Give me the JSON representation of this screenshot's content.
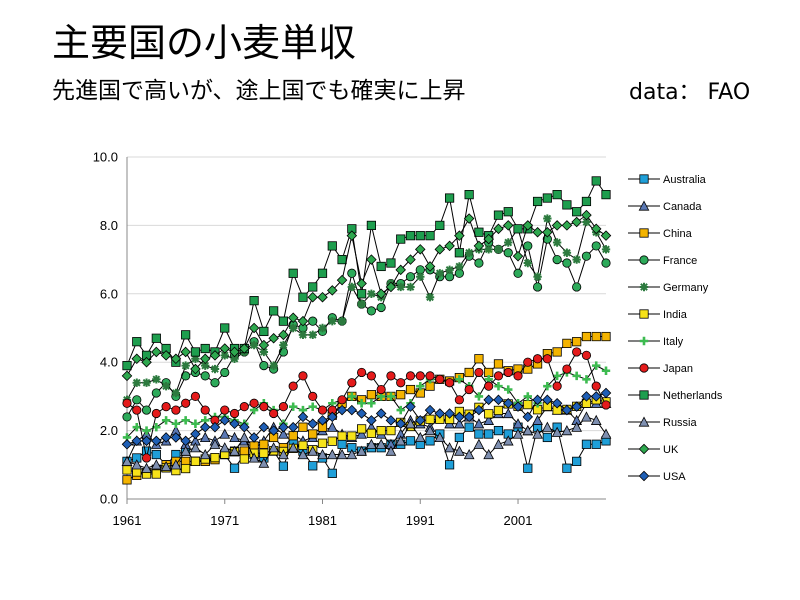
{
  "title": "主要国の小麦単収",
  "subtitle": "先進国で高いが、途上国でも確実に上昇",
  "source": "data： FAO",
  "chart_data": {
    "type": "line",
    "x": [
      1961,
      1962,
      1963,
      1964,
      1965,
      1966,
      1967,
      1968,
      1969,
      1970,
      1971,
      1972,
      1973,
      1974,
      1975,
      1976,
      1977,
      1978,
      1979,
      1980,
      1981,
      1982,
      1983,
      1984,
      1985,
      1986,
      1987,
      1988,
      1989,
      1990,
      1991,
      1992,
      1993,
      1994,
      1995,
      1996,
      1997,
      1998,
      1999,
      2000,
      2001,
      2002,
      2003,
      2004,
      2005,
      2006,
      2007,
      2008,
      2009,
      2010
    ],
    "xticks": [
      "1961",
      "1971",
      "1981",
      "1991",
      "2001"
    ],
    "xlim": [
      1961,
      2010
    ],
    "ylim": [
      0,
      10
    ],
    "yticks": [
      "0.0",
      "2.0",
      "4.0",
      "6.0",
      "8.0",
      "10.0"
    ],
    "grid": "horizontal",
    "legend": "right",
    "series": [
      {
        "name": "Australia",
        "marker": "square",
        "color": "#1F9FD8",
        "values": [
          1.1,
          1.2,
          1.4,
          1.3,
          1.0,
          1.3,
          1.4,
          1.1,
          1.1,
          1.2,
          1.3,
          0.9,
          1.3,
          1.3,
          1.2,
          1.4,
          0.96,
          1.7,
          1.4,
          0.97,
          1.2,
          0.75,
          1.6,
          1.5,
          1.4,
          1.5,
          1.5,
          1.6,
          1.6,
          1.7,
          1.6,
          1.7,
          1.9,
          1.0,
          1.8,
          2.1,
          1.9,
          1.9,
          2.0,
          1.9,
          2.1,
          0.9,
          2.1,
          1.8,
          2.1,
          0.9,
          1.1,
          1.6,
          1.6,
          1.7
        ]
      },
      {
        "name": "Canada",
        "marker": "triangle",
        "color": "#5A78B4",
        "values": [
          1.1,
          1.7,
          1.9,
          1.6,
          1.7,
          2.0,
          1.6,
          1.7,
          1.8,
          1.7,
          1.9,
          1.8,
          1.7,
          1.6,
          1.7,
          2.1,
          1.9,
          1.9,
          1.7,
          1.8,
          2.0,
          2.1,
          1.9,
          1.8,
          1.9,
          2.1,
          1.9,
          1.6,
          1.9,
          2.3,
          2.2,
          2.1,
          2.4,
          2.2,
          2.2,
          2.4,
          2.2,
          2.3,
          2.5,
          2.5,
          2.2,
          2.0,
          2.3,
          2.7,
          2.6,
          2.6,
          2.3,
          2.8,
          2.8,
          2.8
        ]
      },
      {
        "name": "China",
        "marker": "square",
        "color": "#F4B400",
        "values": [
          0.56,
          0.69,
          0.77,
          0.87,
          1.0,
          1.1,
          1.1,
          1.1,
          1.1,
          1.15,
          1.3,
          1.4,
          1.4,
          1.55,
          1.6,
          1.8,
          1.5,
          1.85,
          2.1,
          1.9,
          2.1,
          2.45,
          2.8,
          3.0,
          2.9,
          3.05,
          3.0,
          3.0,
          3.05,
          3.2,
          3.1,
          3.3,
          3.5,
          3.45,
          3.55,
          3.7,
          4.1,
          3.7,
          3.95,
          3.75,
          3.8,
          3.8,
          3.95,
          4.25,
          4.3,
          4.55,
          4.6,
          4.75,
          4.75,
          4.75
        ]
      },
      {
        "name": "France",
        "marker": "circle",
        "color": "#2DAA5A",
        "values": [
          2.4,
          2.9,
          2.6,
          3.1,
          3.4,
          3.0,
          3.6,
          3.7,
          3.6,
          3.4,
          3.7,
          4.2,
          4.3,
          4.6,
          3.9,
          3.8,
          4.3,
          5.1,
          5.0,
          5.2,
          4.9,
          5.3,
          5.2,
          6.6,
          5.7,
          5.5,
          5.6,
          6.3,
          6.3,
          6.5,
          6.7,
          6.7,
          6.5,
          6.5,
          6.6,
          7.1,
          6.9,
          7.5,
          7.3,
          7.2,
          6.6,
          7.4,
          6.2,
          7.6,
          7.0,
          6.9,
          6.2,
          7.1,
          7.4,
          6.9
        ]
      },
      {
        "name": "Germany",
        "marker": "star",
        "color": "#2C7A3E",
        "values": [
          2.9,
          3.4,
          3.4,
          3.5,
          3.3,
          3.1,
          3.9,
          4.1,
          3.9,
          3.8,
          4.2,
          4.1,
          4.3,
          4.5,
          4.3,
          3.9,
          4.5,
          5.0,
          4.8,
          4.8,
          5.0,
          5.2,
          5.2,
          6.2,
          5.7,
          6.0,
          5.9,
          6.3,
          6.2,
          6.2,
          6.5,
          5.9,
          6.6,
          6.7,
          6.8,
          7.2,
          7.3,
          7.3,
          7.3,
          7.5,
          7.9,
          6.9,
          6.5,
          8.2,
          7.5,
          7.2,
          7.0,
          8.1,
          7.8,
          7.3
        ]
      },
      {
        "name": "India",
        "marker": "square",
        "color": "#F6E21A",
        "values": [
          0.85,
          0.79,
          0.73,
          0.73,
          0.91,
          0.83,
          0.89,
          1.1,
          1.17,
          1.21,
          1.31,
          1.38,
          1.17,
          1.34,
          1.34,
          1.41,
          1.39,
          1.48,
          1.57,
          1.44,
          1.63,
          1.69,
          1.84,
          1.84,
          2.05,
          1.92,
          2.0,
          2.0,
          2.24,
          2.12,
          2.28,
          2.33,
          2.33,
          2.33,
          2.56,
          2.48,
          2.68,
          2.49,
          2.59,
          2.78,
          2.71,
          2.76,
          2.61,
          2.71,
          2.6,
          2.62,
          2.71,
          2.8,
          2.9,
          2.84
        ]
      },
      {
        "name": "Italy",
        "marker": "cross",
        "color": "#3DBB50",
        "values": [
          1.8,
          2.1,
          2.0,
          2.1,
          2.3,
          2.2,
          2.3,
          2.2,
          2.3,
          2.4,
          2.4,
          2.3,
          2.2,
          2.6,
          2.8,
          2.6,
          2.2,
          2.7,
          2.6,
          2.7,
          2.6,
          2.8,
          2.9,
          3.0,
          2.8,
          2.8,
          3.0,
          3.0,
          2.6,
          2.8,
          3.3,
          3.5,
          3.5,
          3.4,
          3.5,
          3.3,
          3.0,
          3.5,
          3.3,
          3.2,
          2.8,
          3.0,
          2.8,
          3.3,
          3.6,
          3.7,
          3.6,
          3.5,
          3.9,
          3.75
        ]
      },
      {
        "name": "Japan",
        "marker": "circle",
        "color": "#E41B1B",
        "values": [
          2.8,
          2.6,
          1.2,
          2.5,
          2.7,
          2.6,
          2.8,
          3.0,
          2.6,
          2.3,
          2.6,
          2.5,
          2.7,
          2.8,
          2.7,
          2.5,
          2.7,
          3.3,
          3.6,
          3.0,
          2.6,
          2.6,
          2.9,
          3.4,
          3.7,
          3.6,
          3.2,
          3.6,
          3.4,
          3.6,
          3.6,
          3.6,
          3.5,
          3.4,
          2.9,
          3.2,
          3.7,
          3.3,
          3.6,
          3.7,
          3.6,
          4.0,
          4.1,
          4.1,
          3.3,
          3.8,
          4.3,
          4.2,
          3.3,
          2.75
        ]
      },
      {
        "name": "Netherlands",
        "marker": "square",
        "color": "#1E9E4E",
        "values": [
          3.9,
          4.6,
          4.2,
          4.7,
          4.4,
          4.0,
          4.8,
          4.3,
          4.4,
          4.3,
          5.0,
          4.4,
          4.4,
          5.8,
          4.9,
          5.5,
          5.2,
          6.6,
          5.9,
          6.2,
          6.6,
          7.4,
          7.0,
          7.9,
          6.0,
          8.0,
          6.8,
          6.9,
          7.6,
          7.7,
          7.7,
          7.7,
          8.0,
          8.8,
          7.2,
          8.9,
          7.8,
          7.7,
          8.3,
          8.4,
          7.9,
          7.9,
          8.7,
          8.8,
          8.9,
          8.6,
          8.4,
          8.7,
          9.3,
          8.9
        ]
      },
      {
        "name": "Russia",
        "marker": "triangle",
        "color": "#7E8FB0",
        "values": [
          1.1,
          1.0,
          0.9,
          1.0,
          0.95,
          1.0,
          1.4,
          1.5,
          1.3,
          1.6,
          1.5,
          1.4,
          1.8,
          1.2,
          1.05,
          1.5,
          1.3,
          1.5,
          1.3,
          1.4,
          1.3,
          1.3,
          1.3,
          1.3,
          1.4,
          1.6,
          1.6,
          1.4,
          1.7,
          2.2,
          1.8,
          2.0,
          1.8,
          1.5,
          1.4,
          1.3,
          1.6,
          1.3,
          1.6,
          1.7,
          1.9,
          2.0,
          1.9,
          2.1,
          1.95,
          2.0,
          2.1,
          2.4,
          2.3,
          1.9
        ]
      },
      {
        "name": "UK",
        "marker": "diamond",
        "color": "#2EA84F",
        "values": [
          3.6,
          4.1,
          4.0,
          4.3,
          4.2,
          4.1,
          4.3,
          3.8,
          4.1,
          4.2,
          4.4,
          4.3,
          4.4,
          5.0,
          4.5,
          4.7,
          4.8,
          5.3,
          5.2,
          5.9,
          5.9,
          6.1,
          6.4,
          7.7,
          6.3,
          7.0,
          6.0,
          6.2,
          6.7,
          7.0,
          7.3,
          6.8,
          7.3,
          7.4,
          7.7,
          8.2,
          7.4,
          7.6,
          7.9,
          8.0,
          7.1,
          8.0,
          7.8,
          7.8,
          8.0,
          8.0,
          8.1,
          8.3,
          7.9,
          7.7
        ]
      },
      {
        "name": "USA",
        "marker": "diamond",
        "color": "#1F5FB5",
        "values": [
          1.6,
          1.7,
          1.7,
          1.7,
          1.8,
          1.8,
          1.7,
          1.9,
          2.1,
          2.1,
          2.3,
          2.2,
          2.1,
          1.8,
          2.1,
          2.0,
          2.1,
          2.1,
          2.4,
          2.2,
          2.3,
          2.4,
          2.6,
          2.6,
          2.5,
          2.3,
          2.5,
          2.3,
          2.2,
          2.7,
          2.3,
          2.6,
          2.5,
          2.5,
          2.4,
          2.4,
          2.6,
          2.9,
          2.9,
          2.8,
          2.7,
          2.4,
          2.9,
          2.9,
          2.8,
          2.6,
          2.7,
          3.0,
          3.0,
          3.1
        ]
      }
    ]
  }
}
